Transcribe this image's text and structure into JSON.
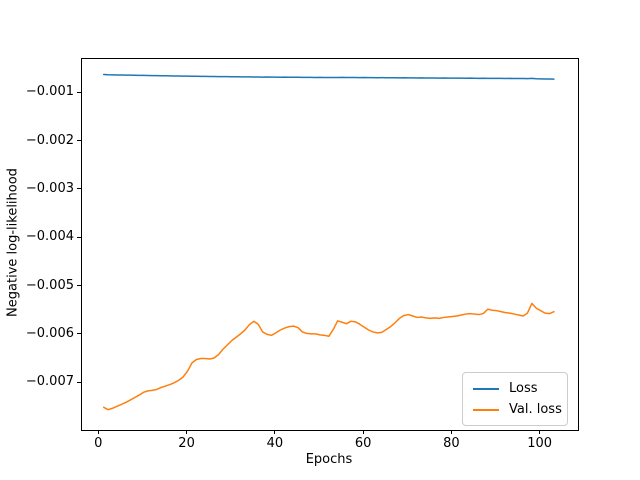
{
  "figure": {
    "background": "#ffffff",
    "text_color": "#000000"
  },
  "chart_data": {
    "type": "line",
    "title": "",
    "xlabel": "Epochs",
    "ylabel": "Negative log-likelihood",
    "grid": false,
    "legend_position": "lower right",
    "xlim": [
      -3.92,
      108.45
    ],
    "ylim": [
      -0.00797,
      -0.00029
    ],
    "xticks": {
      "values": [
        0,
        20,
        40,
        60,
        80,
        100
      ],
      "labels": [
        "0",
        "20",
        "40",
        "60",
        "80",
        "100"
      ]
    },
    "yticks": {
      "values": [
        -0.001,
        -0.002,
        -0.003,
        -0.004,
        -0.005,
        -0.006,
        -0.007
      ],
      "labels": [
        "−0.001",
        "−0.002",
        "−0.003",
        "−0.004",
        "−0.005",
        "−0.006",
        "−0.007"
      ]
    },
    "x": [
      1,
      2,
      3,
      4,
      5,
      6,
      7,
      8,
      9,
      10,
      11,
      12,
      13,
      14,
      15,
      16,
      17,
      18,
      19,
      20,
      21,
      22,
      23,
      24,
      25,
      26,
      27,
      28,
      29,
      30,
      31,
      32,
      33,
      34,
      35,
      36,
      37,
      38,
      39,
      40,
      41,
      42,
      43,
      44,
      45,
      46,
      47,
      48,
      49,
      50,
      51,
      52,
      53,
      54,
      55,
      56,
      57,
      58,
      59,
      60,
      61,
      62,
      63,
      64,
      65,
      66,
      67,
      68,
      69,
      70,
      71,
      72,
      73,
      74,
      75,
      76,
      77,
      78,
      79,
      80,
      81,
      82,
      83,
      84,
      85,
      86,
      87,
      88,
      89,
      90,
      91,
      92,
      93,
      94,
      95,
      96,
      97,
      98,
      99,
      100,
      101,
      102,
      103
    ],
    "series": [
      {
        "name": "Loss",
        "color": "#1f77b4",
        "values": [
          -0.00061,
          -0.000615,
          -0.000618,
          -0.00062,
          -0.000622,
          -0.000624,
          -0.000625,
          -0.000627,
          -0.000628,
          -0.00063,
          -0.000632,
          -0.000633,
          -0.000635,
          -0.000636,
          -0.000638,
          -0.00064,
          -0.000641,
          -0.000642,
          -0.000644,
          -0.000645,
          -0.000646,
          -0.000648,
          -0.000649,
          -0.00065,
          -0.000651,
          -0.000652,
          -0.000654,
          -0.000655,
          -0.000656,
          -0.000657,
          -0.000658,
          -0.00066,
          -0.000661,
          -0.00066,
          -0.000662,
          -0.000663,
          -0.000664,
          -0.000663,
          -0.000665,
          -0.000666,
          -0.000667,
          -0.000666,
          -0.000668,
          -0.000669,
          -0.000668,
          -0.00067,
          -0.000671,
          -0.00067,
          -0.000672,
          -0.000671,
          -0.000673,
          -0.000672,
          -0.000674,
          -0.000673,
          -0.00067,
          -0.000672,
          -0.000674,
          -0.000672,
          -0.000675,
          -0.000674,
          -0.000676,
          -0.000675,
          -0.000677,
          -0.000676,
          -0.000678,
          -0.000677,
          -0.000679,
          -0.00068,
          -0.000678,
          -0.000681,
          -0.00068,
          -0.000682,
          -0.000681,
          -0.000683,
          -0.000682,
          -0.000684,
          -0.000685,
          -0.000683,
          -0.000686,
          -0.000685,
          -0.000687,
          -0.000686,
          -0.000688,
          -0.000687,
          -0.000689,
          -0.00069,
          -0.000688,
          -0.000691,
          -0.00069,
          -0.000692,
          -0.000691,
          -0.000693,
          -0.000692,
          -0.000694,
          -0.000693,
          -0.000695,
          -0.000696,
          -0.000692,
          -0.000698,
          -0.000702,
          -0.000705,
          -0.000703,
          -0.000707
        ]
      },
      {
        "name": "Val. loss",
        "color": "#ff7f0e",
        "values": [
          -0.0075,
          -0.00755,
          -0.00752,
          -0.00748,
          -0.00744,
          -0.0074,
          -0.00735,
          -0.0073,
          -0.00725,
          -0.00719,
          -0.00716,
          -0.00715,
          -0.00713,
          -0.00709,
          -0.00706,
          -0.00703,
          -0.00699,
          -0.00694,
          -0.00687,
          -0.00675,
          -0.00658,
          -0.00651,
          -0.00649,
          -0.00649,
          -0.0065,
          -0.00648,
          -0.00641,
          -0.0063,
          -0.00621,
          -0.00612,
          -0.00605,
          -0.00598,
          -0.0059,
          -0.00579,
          -0.00572,
          -0.00578,
          -0.00594,
          -0.00599,
          -0.00601,
          -0.00596,
          -0.0059,
          -0.00586,
          -0.00583,
          -0.00582,
          -0.00585,
          -0.00594,
          -0.00597,
          -0.00598,
          -0.00598,
          -0.006,
          -0.00601,
          -0.00603,
          -0.00589,
          -0.00571,
          -0.00574,
          -0.00577,
          -0.00572,
          -0.00573,
          -0.00578,
          -0.00584,
          -0.0059,
          -0.00594,
          -0.00596,
          -0.00595,
          -0.00589,
          -0.00583,
          -0.00575,
          -0.00566,
          -0.0056,
          -0.00558,
          -0.00561,
          -0.00564,
          -0.00563,
          -0.00565,
          -0.00566,
          -0.00565,
          -0.00566,
          -0.00564,
          -0.00563,
          -0.00562,
          -0.00561,
          -0.00559,
          -0.00557,
          -0.00556,
          -0.00557,
          -0.00558,
          -0.00556,
          -0.00547,
          -0.00549,
          -0.0055,
          -0.00552,
          -0.00554,
          -0.00555,
          -0.00557,
          -0.00559,
          -0.00561,
          -0.00555,
          -0.00535,
          -0.00545,
          -0.0055,
          -0.00555,
          -0.00556,
          -0.00552
        ]
      }
    ]
  }
}
